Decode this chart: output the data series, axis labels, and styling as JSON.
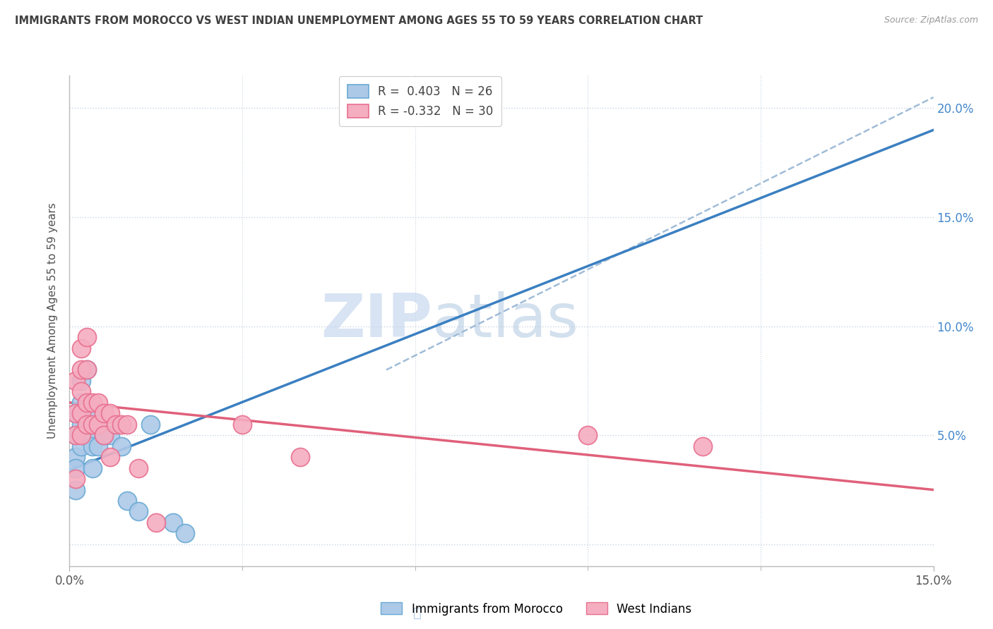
{
  "title": "IMMIGRANTS FROM MOROCCO VS WEST INDIAN UNEMPLOYMENT AMONG AGES 55 TO 59 YEARS CORRELATION CHART",
  "source": "Source: ZipAtlas.com",
  "ylabel": "Unemployment Among Ages 55 to 59 years",
  "legend_morocco_label": "Immigrants from Morocco",
  "legend_westindian_label": "West Indians",
  "R_morocco": 0.403,
  "N_morocco": 26,
  "R_westindian": -0.332,
  "N_westindian": 30,
  "morocco_color": "#adc9e8",
  "westindian_color": "#f5adc0",
  "morocco_edge_color": "#6aaad4",
  "westindian_edge_color": "#e87090",
  "morocco_line_color": "#3a7fc1",
  "westindian_line_color": "#e0607a",
  "trendline_dashed_color": "#a0bcd8",
  "watermark_zip_color": "#c8d8ee",
  "watermark_atlas_color": "#b8cce4",
  "background_color": "#ffffff",
  "grid_color": "#c8d4e0",
  "title_color": "#404040",
  "ylabel_color": "#505050",
  "right_tick_color": "#4488cc",
  "xlim": [
    0.0,
    0.15
  ],
  "ylim": [
    -0.01,
    0.215
  ],
  "yticks": [
    0.0,
    0.05,
    0.1,
    0.15,
    0.2
  ],
  "ytick_labels": [
    "",
    "5.0%",
    "10.0%",
    "15.0%",
    "20.0%"
  ],
  "morocco_scatter_x": [
    0.001,
    0.001,
    0.001,
    0.001,
    0.001,
    0.002,
    0.002,
    0.002,
    0.002,
    0.003,
    0.003,
    0.003,
    0.004,
    0.004,
    0.004,
    0.004,
    0.005,
    0.005,
    0.006,
    0.007,
    0.009,
    0.01,
    0.012,
    0.014,
    0.018,
    0.02
  ],
  "morocco_scatter_y": [
    0.06,
    0.05,
    0.04,
    0.035,
    0.025,
    0.075,
    0.065,
    0.055,
    0.045,
    0.08,
    0.065,
    0.055,
    0.06,
    0.05,
    0.045,
    0.035,
    0.055,
    0.045,
    0.05,
    0.05,
    0.045,
    0.02,
    0.015,
    0.055,
    0.01,
    0.005
  ],
  "westindian_scatter_x": [
    0.001,
    0.001,
    0.001,
    0.001,
    0.002,
    0.002,
    0.002,
    0.002,
    0.002,
    0.003,
    0.003,
    0.003,
    0.003,
    0.004,
    0.004,
    0.005,
    0.005,
    0.006,
    0.006,
    0.007,
    0.007,
    0.008,
    0.009,
    0.01,
    0.012,
    0.015,
    0.03,
    0.04,
    0.09,
    0.11
  ],
  "westindian_scatter_y": [
    0.075,
    0.06,
    0.05,
    0.03,
    0.09,
    0.08,
    0.07,
    0.06,
    0.05,
    0.095,
    0.08,
    0.065,
    0.055,
    0.065,
    0.055,
    0.065,
    0.055,
    0.06,
    0.05,
    0.06,
    0.04,
    0.055,
    0.055,
    0.055,
    0.035,
    0.01,
    0.055,
    0.04,
    0.05,
    0.045
  ],
  "dashed_line_x": [
    0.055,
    0.15
  ],
  "dashed_line_y": [
    0.08,
    0.205
  ],
  "morocco_trendline_x0": 0.0,
  "morocco_trendline_y0": 0.034,
  "morocco_trendline_x1": 0.15,
  "morocco_trendline_y1": 0.19,
  "westindian_trendline_x0": 0.0,
  "westindian_trendline_y0": 0.065,
  "westindian_trendline_x1": 0.15,
  "westindian_trendline_y1": 0.025
}
